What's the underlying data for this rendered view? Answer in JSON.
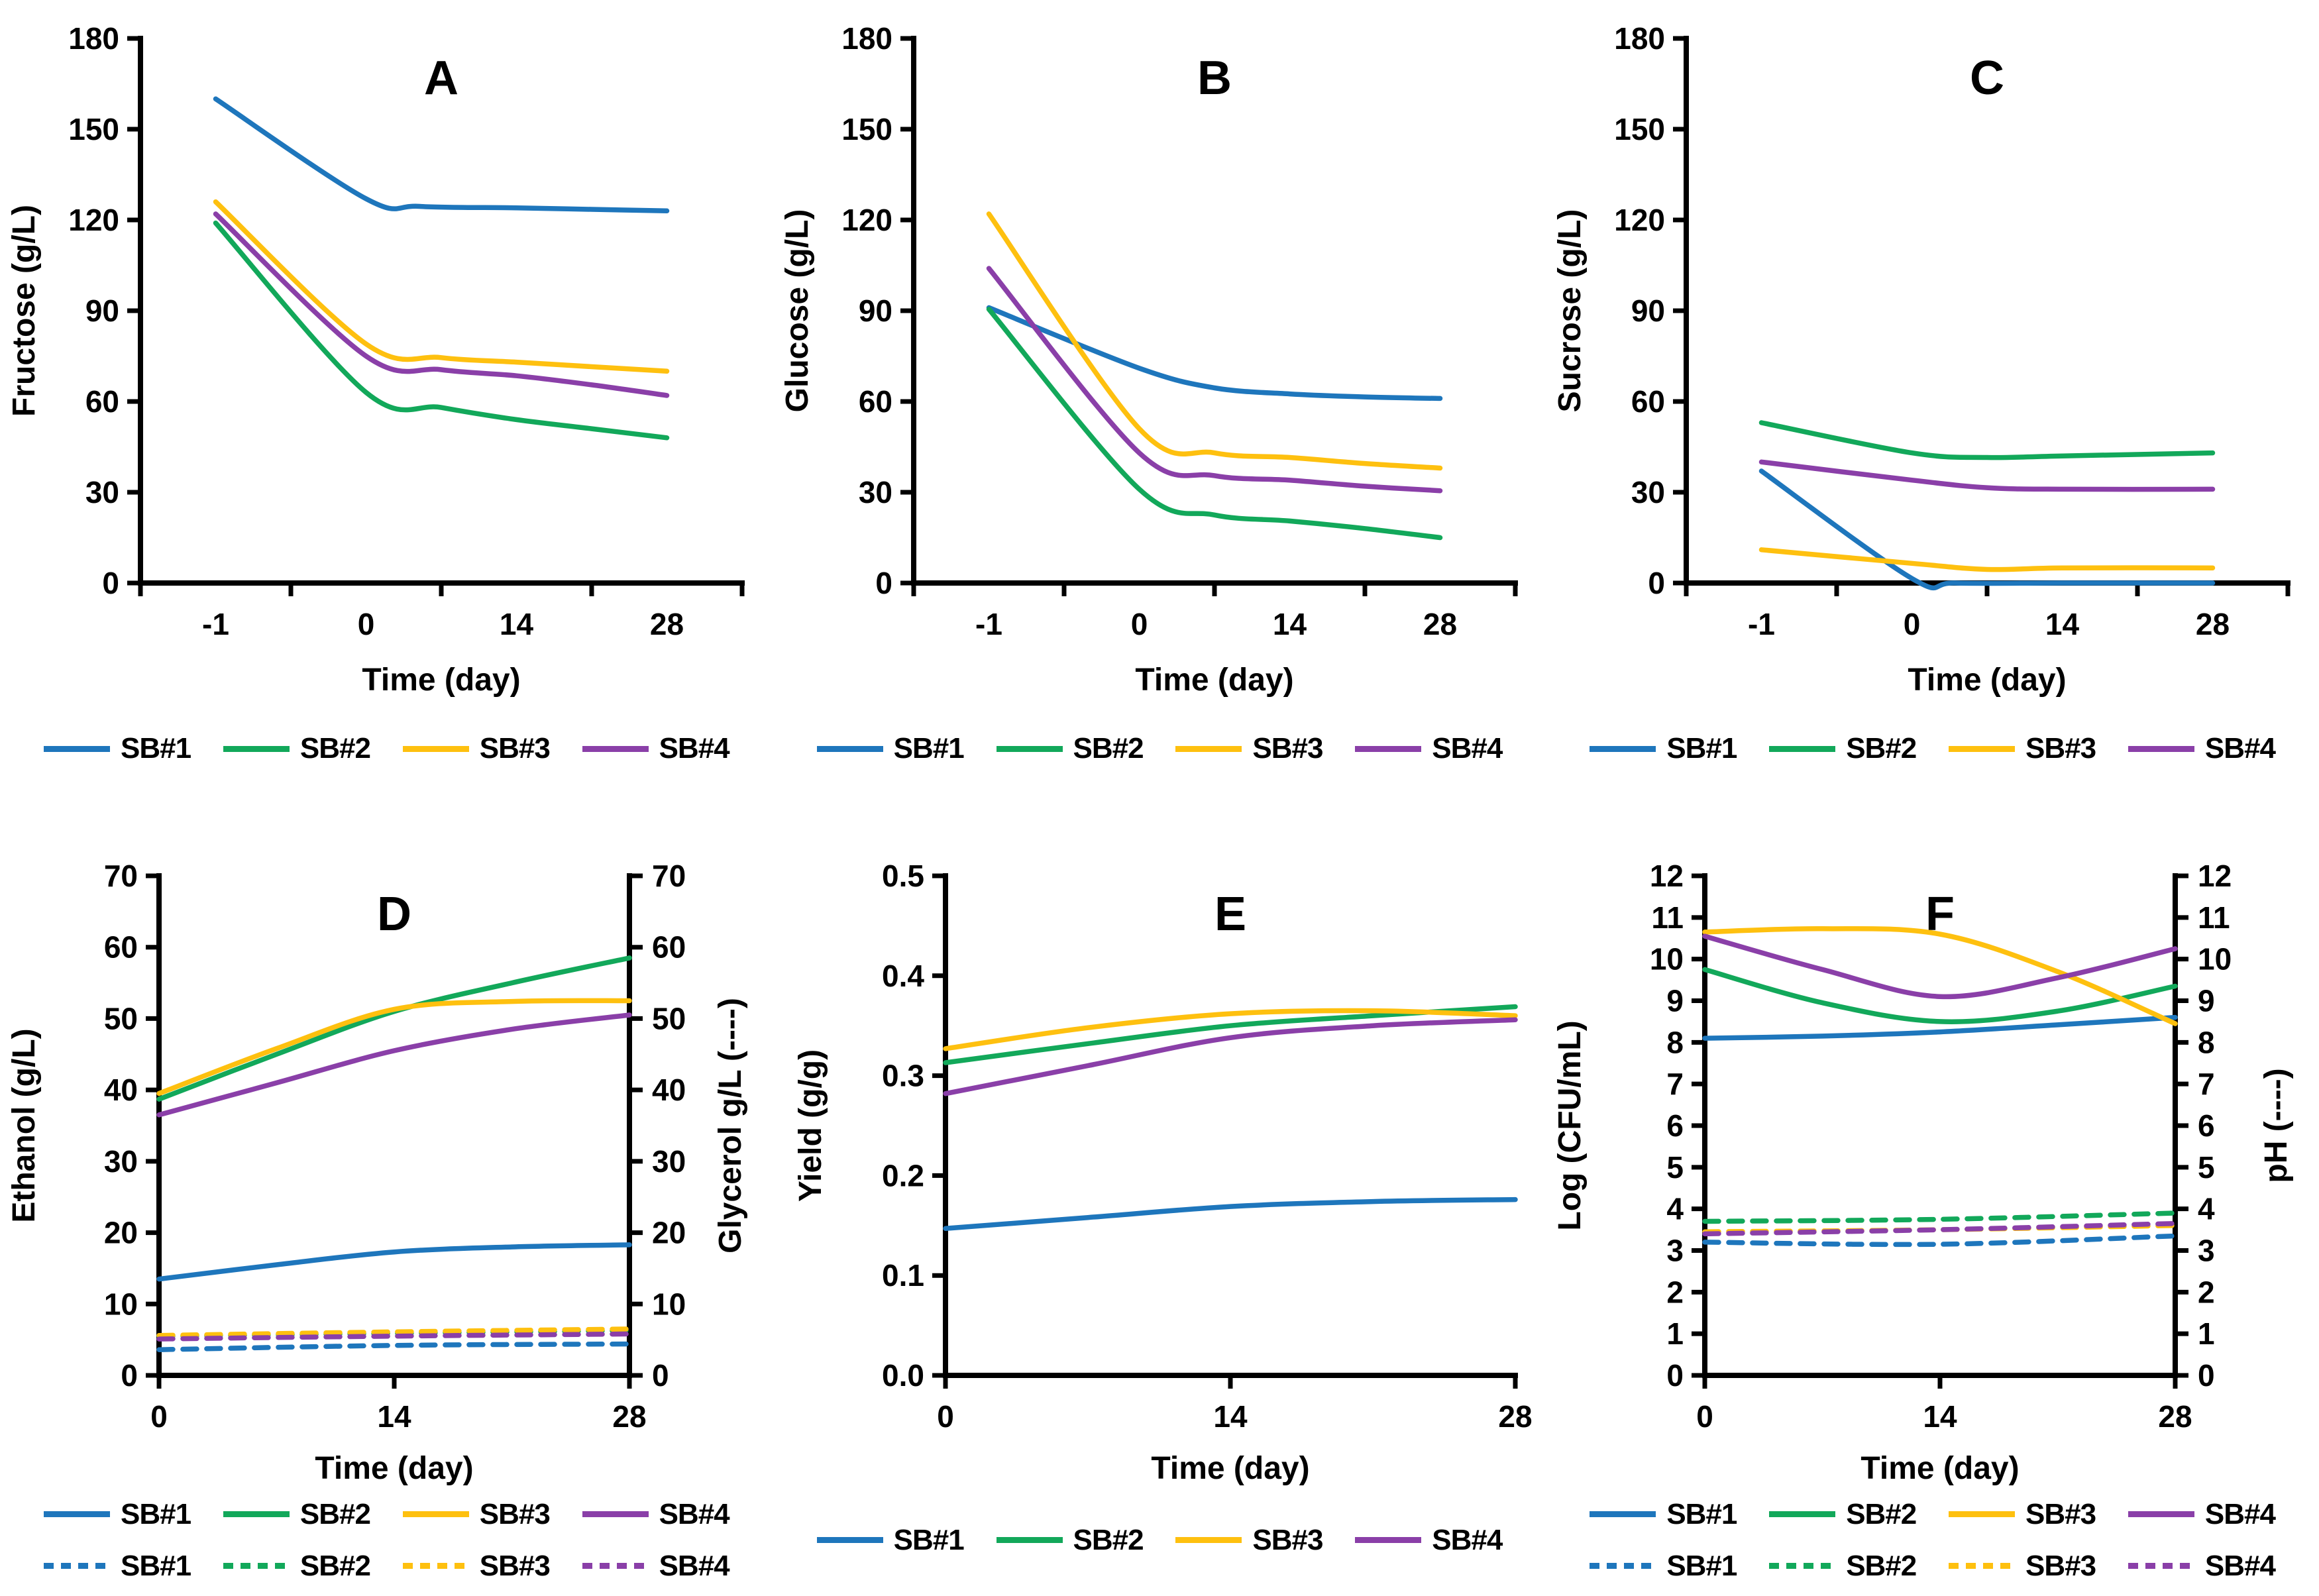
{
  "figure": {
    "background": "#ffffff"
  },
  "colors": {
    "SB#1": "#1E76BC",
    "SB#2": "#12A85A",
    "SB#3": "#FEC00F",
    "SB#4": "#8A3FA8"
  },
  "series_names": [
    "SB#1",
    "SB#2",
    "SB#3",
    "SB#4"
  ],
  "chart_data": [
    {
      "type": "line",
      "panel": "A",
      "title": "A",
      "xlabel": "Time (day)",
      "ylabel": "Fructose (g/L)",
      "ylabel_right": null,
      "ylim": [
        0,
        180
      ],
      "ytick_step": 30,
      "y_tick_decimals": 0,
      "x_axis_style": "between",
      "x_tick_days": [
        -1,
        0,
        14,
        28
      ],
      "x_tick_labels": [
        "-1",
        "0",
        "14",
        "28"
      ],
      "grid": false,
      "legend_position": "bottom",
      "series": [
        {
          "name": "SB#1",
          "dash": false,
          "axis": "left",
          "points": [
            [
              -1,
              160
            ],
            [
              0,
              127
            ],
            [
              5,
              124.5
            ],
            [
              14,
              124
            ],
            [
              21,
              123.5
            ],
            [
              28,
              123
            ]
          ]
        },
        {
          "name": "SB#2",
          "dash": false,
          "axis": "left",
          "points": [
            [
              -1,
              119
            ],
            [
              0,
              63
            ],
            [
              7,
              58
            ],
            [
              14,
              54
            ],
            [
              21,
              51
            ],
            [
              28,
              48
            ]
          ]
        },
        {
          "name": "SB#3",
          "dash": false,
          "axis": "left",
          "points": [
            [
              -1,
              126
            ],
            [
              0,
              79
            ],
            [
              7,
              74.5
            ],
            [
              14,
              73
            ],
            [
              21,
              71.5
            ],
            [
              28,
              70
            ]
          ]
        },
        {
          "name": "SB#4",
          "dash": false,
          "axis": "left",
          "points": [
            [
              -1,
              122
            ],
            [
              0,
              75
            ],
            [
              7,
              70.5
            ],
            [
              14,
              68.5
            ],
            [
              21,
              65.5
            ],
            [
              28,
              62
            ]
          ]
        }
      ],
      "legend_rows": [
        {
          "dash": false,
          "names": [
            "SB#1",
            "SB#2",
            "SB#3",
            "SB#4"
          ]
        }
      ]
    },
    {
      "type": "line",
      "panel": "B",
      "title": "B",
      "xlabel": "Time (day)",
      "ylabel": "Glucose (g/L)",
      "ylabel_right": null,
      "ylim": [
        0,
        180
      ],
      "ytick_step": 30,
      "y_tick_decimals": 0,
      "x_axis_style": "between",
      "x_tick_days": [
        -1,
        0,
        14,
        28
      ],
      "x_tick_labels": [
        "-1",
        "0",
        "14",
        "28"
      ],
      "grid": false,
      "legend_position": "bottom",
      "series": [
        {
          "name": "SB#1",
          "dash": false,
          "axis": "left",
          "points": [
            [
              -1,
              91
            ],
            [
              0,
              71
            ],
            [
              7,
              64.5
            ],
            [
              14,
              62.5
            ],
            [
              21,
              61.5
            ],
            [
              28,
              61
            ]
          ]
        },
        {
          "name": "SB#2",
          "dash": false,
          "axis": "left",
          "points": [
            [
              -1,
              90.5
            ],
            [
              0,
              31
            ],
            [
              7,
              22.5
            ],
            [
              14,
              20.5
            ],
            [
              21,
              18
            ],
            [
              28,
              15
            ]
          ]
        },
        {
          "name": "SB#3",
          "dash": false,
          "axis": "left",
          "points": [
            [
              -1,
              122
            ],
            [
              0,
              51
            ],
            [
              7,
              43
            ],
            [
              14,
              41.5
            ],
            [
              21,
              39.5
            ],
            [
              28,
              38
            ]
          ]
        },
        {
          "name": "SB#4",
          "dash": false,
          "axis": "left",
          "points": [
            [
              -1,
              104
            ],
            [
              0,
              43
            ],
            [
              7,
              35.5
            ],
            [
              14,
              34
            ],
            [
              21,
              32
            ],
            [
              28,
              30.5
            ]
          ]
        }
      ],
      "legend_rows": [
        {
          "dash": false,
          "names": [
            "SB#1",
            "SB#2",
            "SB#3",
            "SB#4"
          ]
        }
      ]
    },
    {
      "type": "line",
      "panel": "C",
      "title": "C",
      "xlabel": "Time (day)",
      "ylabel": "Sucrose (g/L)",
      "ylabel_right": null,
      "ylim": [
        0,
        180
      ],
      "ytick_step": 30,
      "y_tick_decimals": 0,
      "x_axis_style": "between",
      "x_tick_days": [
        -1,
        0,
        14,
        28
      ],
      "x_tick_labels": [
        "-1",
        "0",
        "14",
        "28"
      ],
      "grid": false,
      "legend_position": "bottom",
      "series": [
        {
          "name": "SB#1",
          "dash": false,
          "axis": "left",
          "points": [
            [
              -1,
              37
            ],
            [
              0,
              1.5
            ],
            [
              4,
              0
            ],
            [
              14,
              0
            ],
            [
              21,
              0
            ],
            [
              28,
              0
            ]
          ]
        },
        {
          "name": "SB#2",
          "dash": false,
          "axis": "left",
          "points": [
            [
              -1,
              53
            ],
            [
              0,
              43
            ],
            [
              7,
              41.5
            ],
            [
              14,
              42
            ],
            [
              28,
              43
            ]
          ]
        },
        {
          "name": "SB#3",
          "dash": false,
          "axis": "left",
          "points": [
            [
              -1,
              11
            ],
            [
              0,
              6.5
            ],
            [
              7,
              4.5
            ],
            [
              14,
              5
            ],
            [
              28,
              5
            ]
          ]
        },
        {
          "name": "SB#4",
          "dash": false,
          "axis": "left",
          "points": [
            [
              -1,
              40
            ],
            [
              0,
              34
            ],
            [
              7,
              31.5
            ],
            [
              14,
              31
            ],
            [
              28,
              31
            ]
          ]
        }
      ],
      "legend_rows": [
        {
          "dash": false,
          "names": [
            "SB#1",
            "SB#2",
            "SB#3",
            "SB#4"
          ]
        }
      ]
    },
    {
      "type": "line",
      "panel": "D",
      "title": "D",
      "xlabel": "Time (day)",
      "ylabel": "Ethanol (g/L)",
      "ylabel_right": "Glycerol g/L (----)",
      "ylim": [
        0,
        70
      ],
      "ytick_step": 10,
      "y_tick_decimals": 0,
      "ylim_right": [
        0,
        70
      ],
      "ytick_step_right": 10,
      "x_axis_style": "on",
      "x_tick_days": [
        0,
        14,
        28
      ],
      "x_tick_labels": [
        "0",
        "14",
        "28"
      ],
      "grid": false,
      "legend_position": "bottom",
      "series": [
        {
          "name": "SB#1",
          "dash": false,
          "axis": "left",
          "points": [
            [
              0,
              13.5
            ],
            [
              7,
              15.5
            ],
            [
              14,
              17.3
            ],
            [
              21,
              18
            ],
            [
              28,
              18.3
            ]
          ]
        },
        {
          "name": "SB#2",
          "dash": false,
          "axis": "left",
          "points": [
            [
              0,
              38.7
            ],
            [
              7,
              45
            ],
            [
              14,
              51
            ],
            [
              21,
              55
            ],
            [
              28,
              58.5
            ]
          ]
        },
        {
          "name": "SB#3",
          "dash": false,
          "axis": "left",
          "points": [
            [
              0,
              39.5
            ],
            [
              7,
              45.8
            ],
            [
              14,
              51.3
            ],
            [
              21,
              52.4
            ],
            [
              28,
              52.5
            ]
          ]
        },
        {
          "name": "SB#4",
          "dash": false,
          "axis": "left",
          "points": [
            [
              0,
              36.5
            ],
            [
              7,
              41
            ],
            [
              14,
              45.5
            ],
            [
              21,
              48.5
            ],
            [
              28,
              50.5
            ]
          ]
        },
        {
          "name": "SB#1",
          "dash": true,
          "axis": "right",
          "points": [
            [
              0,
              3.6
            ],
            [
              14,
              4.2
            ],
            [
              28,
              4.4
            ]
          ]
        },
        {
          "name": "SB#2",
          "dash": true,
          "axis": "right",
          "points": [
            [
              0,
              5.5
            ],
            [
              14,
              5.9
            ],
            [
              28,
              6.3
            ]
          ]
        },
        {
          "name": "SB#3",
          "dash": true,
          "axis": "right",
          "points": [
            [
              0,
              5.6
            ],
            [
              14,
              6.1
            ],
            [
              28,
              6.5
            ]
          ]
        },
        {
          "name": "SB#4",
          "dash": true,
          "axis": "right",
          "points": [
            [
              0,
              5.1
            ],
            [
              14,
              5.5
            ],
            [
              28,
              5.8
            ]
          ]
        }
      ],
      "legend_rows": [
        {
          "dash": false,
          "names": [
            "SB#1",
            "SB#2",
            "SB#3",
            "SB#4"
          ]
        },
        {
          "dash": true,
          "names": [
            "SB#1",
            "SB#2",
            "SB#3",
            "SB#4"
          ]
        }
      ]
    },
    {
      "type": "line",
      "panel": "E",
      "title": "E",
      "xlabel": "Time (day)",
      "ylabel": "Yield (g/g)",
      "ylabel_right": null,
      "ylim": [
        0,
        0.5
      ],
      "ytick_step": 0.1,
      "y_tick_decimals": 1,
      "x_axis_style": "on",
      "x_tick_days": [
        0,
        14,
        28
      ],
      "x_tick_labels": [
        "0",
        "14",
        "28"
      ],
      "grid": false,
      "legend_position": "bottom",
      "series": [
        {
          "name": "SB#1",
          "dash": false,
          "axis": "left",
          "points": [
            [
              0,
              0.147
            ],
            [
              7,
              0.158
            ],
            [
              14,
              0.169
            ],
            [
              21,
              0.174
            ],
            [
              28,
              0.176
            ]
          ]
        },
        {
          "name": "SB#2",
          "dash": false,
          "axis": "left",
          "points": [
            [
              0,
              0.313
            ],
            [
              7,
              0.332
            ],
            [
              14,
              0.35
            ],
            [
              21,
              0.36
            ],
            [
              28,
              0.369
            ]
          ]
        },
        {
          "name": "SB#3",
          "dash": false,
          "axis": "left",
          "points": [
            [
              0,
              0.327
            ],
            [
              7,
              0.348
            ],
            [
              14,
              0.362
            ],
            [
              21,
              0.365
            ],
            [
              28,
              0.36
            ]
          ]
        },
        {
          "name": "SB#4",
          "dash": false,
          "axis": "left",
          "points": [
            [
              0,
              0.282
            ],
            [
              7,
              0.31
            ],
            [
              14,
              0.338
            ],
            [
              21,
              0.35
            ],
            [
              28,
              0.356
            ]
          ]
        }
      ],
      "legend_rows": [
        {
          "dash": false,
          "names": [
            "SB#1",
            "SB#2",
            "SB#3",
            "SB#4"
          ]
        }
      ]
    },
    {
      "type": "line",
      "panel": "F",
      "title": "F",
      "xlabel": "Time (day)",
      "ylabel": "Log (CFU/mL)",
      "ylabel_right": "pH (----)",
      "ylim": [
        0,
        12
      ],
      "ytick_step": 1,
      "y_tick_decimals": 0,
      "ylim_right": [
        0,
        12
      ],
      "ytick_step_right": 1,
      "x_axis_style": "on",
      "x_tick_days": [
        0,
        14,
        28
      ],
      "x_tick_labels": [
        "0",
        "14",
        "28"
      ],
      "grid": false,
      "legend_position": "bottom",
      "series": [
        {
          "name": "SB#1",
          "dash": false,
          "axis": "left",
          "points": [
            [
              0,
              8.1
            ],
            [
              7,
              8.15
            ],
            [
              14,
              8.25
            ],
            [
              21,
              8.42
            ],
            [
              28,
              8.6
            ]
          ]
        },
        {
          "name": "SB#2",
          "dash": false,
          "axis": "left",
          "points": [
            [
              0,
              9.75
            ],
            [
              7,
              8.95
            ],
            [
              14,
              8.5
            ],
            [
              21,
              8.75
            ],
            [
              28,
              9.35
            ]
          ]
        },
        {
          "name": "SB#3",
          "dash": false,
          "axis": "left",
          "points": [
            [
              0,
              10.65
            ],
            [
              7,
              10.73
            ],
            [
              14,
              10.6
            ],
            [
              21,
              9.7
            ],
            [
              28,
              8.45
            ]
          ]
        },
        {
          "name": "SB#4",
          "dash": false,
          "axis": "left",
          "points": [
            [
              0,
              10.55
            ],
            [
              7,
              9.75
            ],
            [
              14,
              9.1
            ],
            [
              21,
              9.55
            ],
            [
              28,
              10.25
            ]
          ]
        },
        {
          "name": "SB#1",
          "dash": true,
          "axis": "right",
          "points": [
            [
              0,
              3.2
            ],
            [
              14,
              3.15
            ],
            [
              28,
              3.35
            ]
          ]
        },
        {
          "name": "SB#2",
          "dash": true,
          "axis": "right",
          "points": [
            [
              0,
              3.7
            ],
            [
              14,
              3.75
            ],
            [
              28,
              3.9
            ]
          ]
        },
        {
          "name": "SB#3",
          "dash": true,
          "axis": "right",
          "points": [
            [
              0,
              3.45
            ],
            [
              14,
              3.5
            ],
            [
              28,
              3.6
            ]
          ]
        },
        {
          "name": "SB#4",
          "dash": true,
          "axis": "right",
          "points": [
            [
              0,
              3.4
            ],
            [
              14,
              3.5
            ],
            [
              28,
              3.65
            ]
          ]
        }
      ],
      "legend_rows": [
        {
          "dash": false,
          "names": [
            "SB#1",
            "SB#2",
            "SB#3",
            "SB#4"
          ]
        },
        {
          "dash": true,
          "names": [
            "SB#1",
            "SB#2",
            "SB#3",
            "SB#4"
          ]
        }
      ]
    }
  ]
}
